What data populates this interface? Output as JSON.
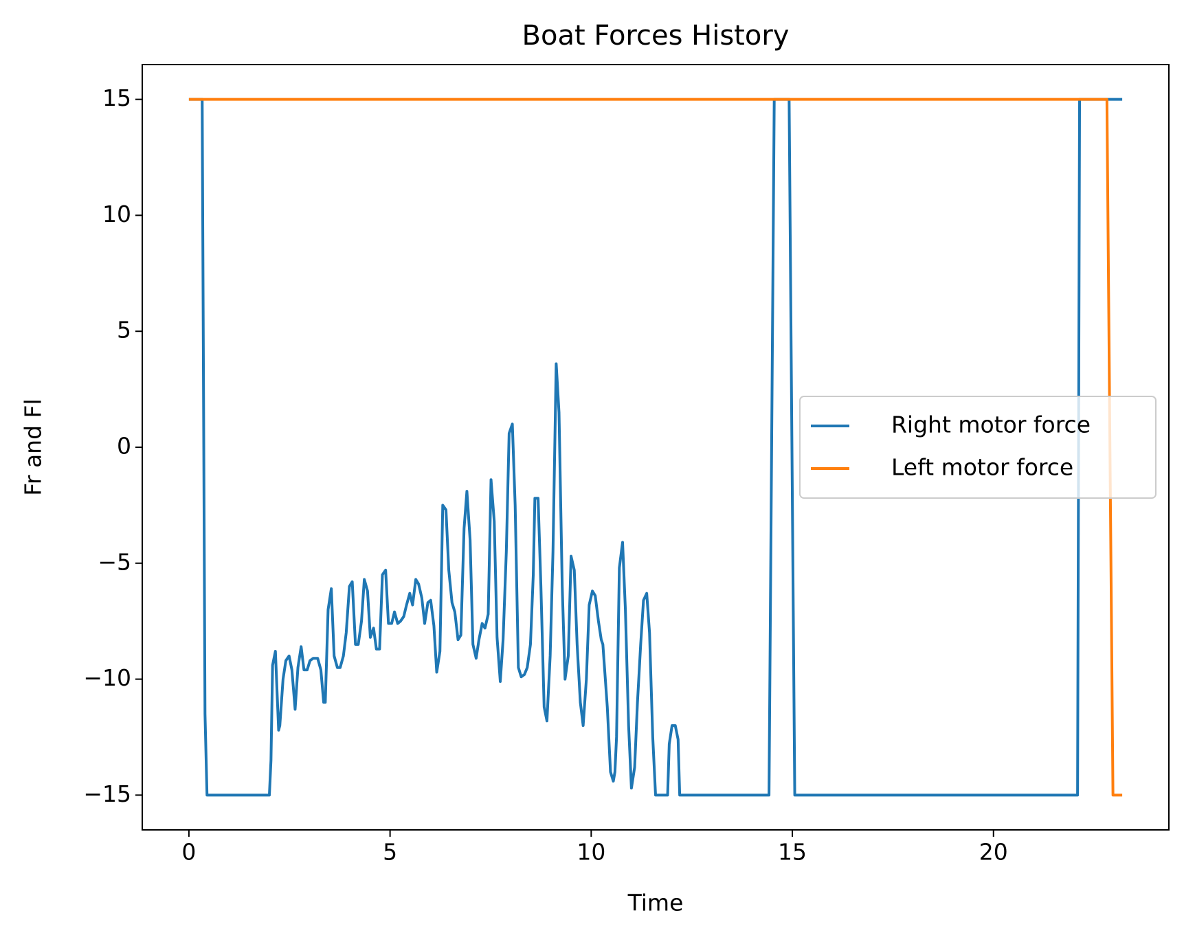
{
  "chart_data": {
    "type": "line",
    "title": "Boat Forces History",
    "x_label": "Time",
    "y_label": "Fr and Fl",
    "xlim": [
      -1.16,
      24.36
    ],
    "ylim": [
      -16.5,
      16.5
    ],
    "xticks": [
      0,
      5,
      10,
      15,
      20
    ],
    "yticks": [
      {
        "value": -15,
        "label": "−15"
      },
      {
        "value": -10,
        "label": "−10"
      },
      {
        "value": -5,
        "label": "−5"
      },
      0,
      5,
      10,
      15
    ],
    "legend": "center right",
    "series": [
      {
        "name": "Right motor force",
        "color": "#1f77b4",
        "x": [
          0,
          0.33,
          0.4,
          0.45,
          2.0,
          2.04,
          2.08,
          2.15,
          2.23,
          2.26,
          2.34,
          2.41,
          2.49,
          2.56,
          2.64,
          2.71,
          2.79,
          2.86,
          2.94,
          3.01,
          3.09,
          3.2,
          3.28,
          3.35,
          3.39,
          3.46,
          3.54,
          3.61,
          3.69,
          3.76,
          3.84,
          3.91,
          3.99,
          4.06,
          4.14,
          4.21,
          4.29,
          4.36,
          4.44,
          4.51,
          4.59,
          4.66,
          4.74,
          4.81,
          4.89,
          4.96,
          5.04,
          5.11,
          5.19,
          5.26,
          5.34,
          5.41,
          5.49,
          5.56,
          5.64,
          5.71,
          5.79,
          5.86,
          5.94,
          6.01,
          6.09,
          6.16,
          6.24,
          6.31,
          6.39,
          6.46,
          6.54,
          6.61,
          6.69,
          6.76,
          6.84,
          6.91,
          6.99,
          7.06,
          7.14,
          7.21,
          7.29,
          7.36,
          7.44,
          7.51,
          7.59,
          7.66,
          7.74,
          7.81,
          7.89,
          7.96,
          8.04,
          8.11,
          8.19,
          8.26,
          8.34,
          8.41,
          8.49,
          8.56,
          8.6,
          8.68,
          8.75,
          8.83,
          8.9,
          8.98,
          9.05,
          9.13,
          9.2,
          9.28,
          9.35,
          9.43,
          9.5,
          9.58,
          9.65,
          9.73,
          9.8,
          9.88,
          9.95,
          10.03,
          10.1,
          10.18,
          10.25,
          10.29,
          10.4,
          10.48,
          10.55,
          10.59,
          10.63,
          10.7,
          10.78,
          10.85,
          10.93,
          11.0,
          11.08,
          11.15,
          11.23,
          11.3,
          11.38,
          11.45,
          11.53,
          11.6,
          11.9,
          11.94,
          12.01,
          12.09,
          12.16,
          12.2,
          14.42,
          14.55,
          14.92,
          15.06,
          22.09,
          22.14,
          23.2
        ],
        "values": [
          15,
          15,
          -11.5,
          -15,
          -15,
          -13.5,
          -9.4,
          -8.8,
          -12.2,
          -12,
          -10,
          -9.2,
          -9,
          -9.6,
          -11.3,
          -9.5,
          -8.6,
          -9.6,
          -9.6,
          -9.2,
          -9.1,
          -9.1,
          -9.6,
          -11,
          -11,
          -7,
          -6.1,
          -9,
          -9.5,
          -9.5,
          -9,
          -8,
          -6,
          -5.8,
          -8.5,
          -8.5,
          -7.5,
          -5.7,
          -6.2,
          -8.2,
          -7.8,
          -8.7,
          -8.7,
          -5.5,
          -5.3,
          -7.6,
          -7.6,
          -7.1,
          -7.6,
          -7.5,
          -7.3,
          -6.8,
          -6.3,
          -6.8,
          -5.7,
          -5.9,
          -6.5,
          -7.6,
          -6.7,
          -6.6,
          -7.7,
          -9.7,
          -8.8,
          -2.5,
          -2.7,
          -5.3,
          -6.7,
          -7.1,
          -8.3,
          -8.1,
          -3.5,
          -1.9,
          -4,
          -8.5,
          -9.1,
          -8.3,
          -7.6,
          -7.8,
          -7.2,
          -1.4,
          -3.2,
          -8.2,
          -10.1,
          -8.3,
          -4.5,
          0.6,
          1,
          -2.5,
          -9.5,
          -9.9,
          -9.8,
          -9.5,
          -8.5,
          -5.5,
          -2.2,
          -2.2,
          -6,
          -11.2,
          -11.8,
          -9,
          -4.5,
          3.6,
          1.5,
          -6,
          -10,
          -9,
          -4.7,
          -5.3,
          -8.5,
          -11,
          -12,
          -10,
          -6.8,
          -6.2,
          -6.4,
          -7.5,
          -8.3,
          -8.5,
          -11.2,
          -14,
          -14.4,
          -14,
          -12.5,
          -5.2,
          -4.1,
          -7,
          -12,
          -14.7,
          -13.8,
          -11,
          -8.5,
          -6.6,
          -6.3,
          -8,
          -12.5,
          -15,
          -15,
          -12.8,
          -12,
          -12,
          -12.6,
          -15,
          -15,
          15,
          15,
          -15,
          -15,
          15,
          15
        ]
      },
      {
        "name": "Left motor force",
        "color": "#ff7f0e",
        "x": [
          0,
          22.82,
          22.97,
          23.2
        ],
        "values": [
          15,
          15,
          -15,
          -15
        ]
      }
    ]
  }
}
